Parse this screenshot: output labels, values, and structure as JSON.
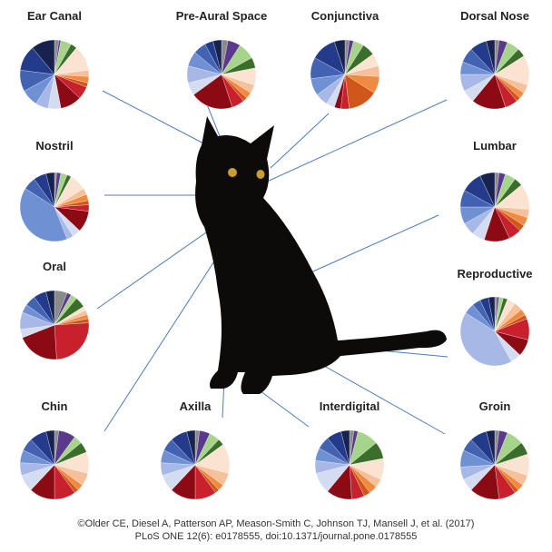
{
  "chart_data": [
    {
      "type": "pie",
      "title": "Ear Canal",
      "values": [
        2,
        1,
        5,
        3,
        12,
        3,
        3,
        2,
        6,
        10,
        6,
        6,
        8,
        10,
        12,
        11
      ]
    },
    {
      "type": "pie",
      "title": "Pre-Aural Space",
      "values": [
        3,
        6,
        8,
        5,
        8,
        4,
        3,
        2,
        6,
        20,
        6,
        8,
        7,
        6,
        4,
        4
      ]
    },
    {
      "type": "pie",
      "title": "Conjunctiva",
      "values": [
        2,
        2,
        5,
        6,
        6,
        5,
        8,
        14,
        4,
        3,
        4,
        6,
        8,
        10,
        12,
        5
      ]
    },
    {
      "type": "pie",
      "title": "Dorsal Nose",
      "values": [
        2,
        4,
        6,
        4,
        14,
        4,
        3,
        2,
        6,
        16,
        6,
        8,
        6,
        7,
        8,
        4
      ]
    },
    {
      "type": "pie",
      "title": "Nostril",
      "values": [
        1,
        2,
        3,
        2,
        8,
        3,
        3,
        2,
        3,
        10,
        4,
        3,
        40,
        6,
        6,
        4
      ]
    },
    {
      "type": "pie",
      "title": "Lumbar",
      "values": [
        2,
        3,
        5,
        4,
        12,
        4,
        4,
        3,
        6,
        12,
        6,
        6,
        8,
        8,
        10,
        7
      ]
    },
    {
      "type": "pie",
      "title": "Oral",
      "values": [
        6,
        2,
        3,
        5,
        2,
        2,
        2,
        2,
        25,
        20,
        4,
        8,
        4,
        5,
        6,
        4
      ]
    },
    {
      "type": "pie",
      "title": "Reproductive",
      "values": [
        1,
        1,
        2,
        2,
        4,
        4,
        3,
        2,
        10,
        8,
        5,
        42,
        5,
        4,
        4,
        3
      ]
    },
    {
      "type": "pie",
      "title": "Chin",
      "values": [
        2,
        8,
        4,
        5,
        10,
        6,
        3,
        2,
        10,
        12,
        8,
        6,
        6,
        6,
        8,
        4
      ]
    },
    {
      "type": "pie",
      "title": "Axilla",
      "values": [
        2,
        5,
        5,
        3,
        14,
        6,
        3,
        2,
        10,
        12,
        8,
        6,
        6,
        6,
        8,
        4
      ]
    },
    {
      "type": "pie",
      "title": "Interdigital",
      "values": [
        2,
        2,
        10,
        8,
        10,
        4,
        4,
        3,
        6,
        12,
        10,
        6,
        6,
        6,
        7,
        4
      ]
    },
    {
      "type": "pie",
      "title": "Groin",
      "values": [
        2,
        4,
        8,
        6,
        10,
        5,
        3,
        2,
        8,
        14,
        6,
        6,
        8,
        6,
        8,
        4
      ]
    }
  ],
  "colors": [
    "#8a8a8a",
    "#5b3a8c",
    "#a6d48a",
    "#3a6e2a",
    "#fbe3d2",
    "#f5c09a",
    "#f08a40",
    "#d0561a",
    "#c8202c",
    "#8b0a14",
    "#d4dcf2",
    "#a8b8e6",
    "#7090d4",
    "#4462b2",
    "#243a8a",
    "#18224e"
  ],
  "credit": [
    "©Older CE, Diesel A, Patterson AP, Meason-Smith C, Johnson TJ, Mansell J, et al. (2017)",
    "PLoS ONE 12(6): e0178555, doi:10.1371/journal.pone.0178555"
  ]
}
